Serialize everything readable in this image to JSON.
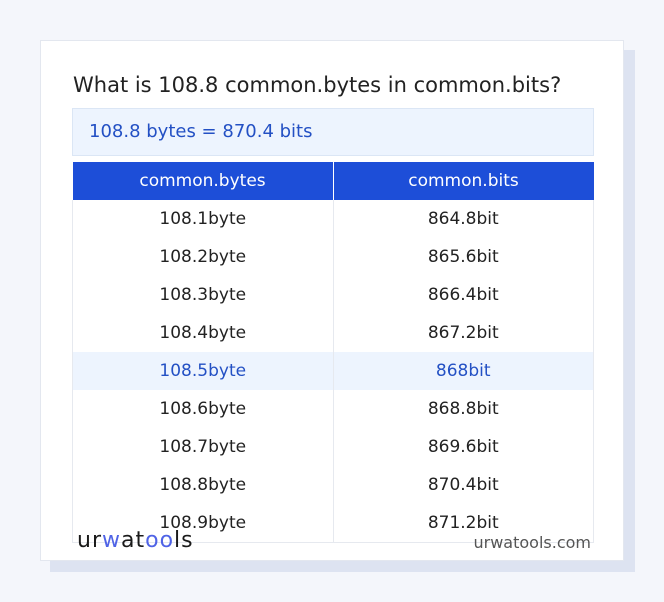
{
  "title": "What is 108.8 common.bytes in common.bits?",
  "result": "108.8 bytes = 870.4 bits",
  "table": {
    "headers": [
      "common.bytes",
      "common.bits"
    ],
    "rows": [
      [
        "108.1byte",
        "864.8bit"
      ],
      [
        "108.2byte",
        "865.6bit"
      ],
      [
        "108.3byte",
        "866.4bit"
      ],
      [
        "108.4byte",
        "867.2bit"
      ],
      [
        "108.5byte",
        "868bit"
      ],
      [
        "108.6byte",
        "868.8bit"
      ],
      [
        "108.7byte",
        "869.6bit"
      ],
      [
        "108.8byte",
        "870.4bit"
      ],
      [
        "108.9byte",
        "871.2bit"
      ]
    ],
    "highlighted_row": 4
  },
  "footer": {
    "logo": "urwatools",
    "site": "urwatools.com"
  },
  "colors": {
    "accent": "#1d4ed8",
    "highlight_bg": "#edf4fe"
  }
}
